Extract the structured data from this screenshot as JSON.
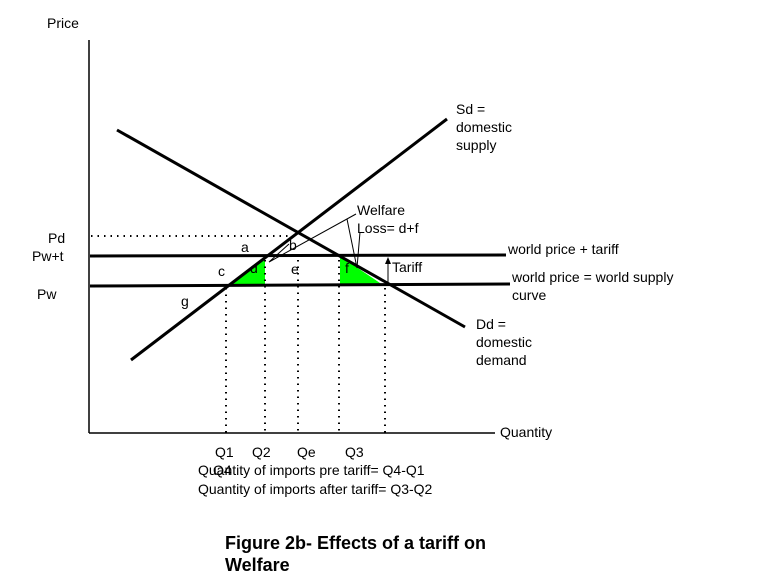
{
  "axes": {
    "y_label": "Price",
    "x_label": "Quantity",
    "price_levels": [
      {
        "label": "Pd",
        "value": 1.25
      },
      {
        "label": "Pw+t",
        "value": 1.0
      },
      {
        "label": "Pw",
        "value": 0.5
      }
    ],
    "quantity_levels": [
      {
        "label": "Q1",
        "value": 1.0
      },
      {
        "label": "Q2",
        "value": 1.6
      },
      {
        "label": "Qe",
        "value": 2.45
      },
      {
        "label": "Q3",
        "value": 3.35
      },
      {
        "label": "Q4",
        "value": 4.3
      }
    ]
  },
  "curves": {
    "supply_label": [
      "Sd =",
      "domestic",
      "supply"
    ],
    "demand_label": [
      "Dd =",
      "domestic",
      "demand"
    ],
    "world_tariff_label": "world price + tariff",
    "world_price_label": [
      "world price = world supply",
      "curve"
    ]
  },
  "areas": {
    "a": "a",
    "b": "b",
    "c": "c",
    "d": "d",
    "e": "e",
    "f": "f",
    "g": "g"
  },
  "annotations": {
    "tariff_label": "Tariff",
    "welfare_label": [
      "Welfare",
      "Loss= d+f"
    ]
  },
  "notes": {
    "imports_pre": "Quantity of imports pre tariff= Q4-Q1",
    "imports_after": "Quantity of imports after tariff= Q3-Q2"
  },
  "caption": [
    "Figure 2b- Effects of a tariff on",
    "Welfare"
  ],
  "colors": {
    "deadweight_fill": "#00ff00",
    "line": "#000000"
  }
}
